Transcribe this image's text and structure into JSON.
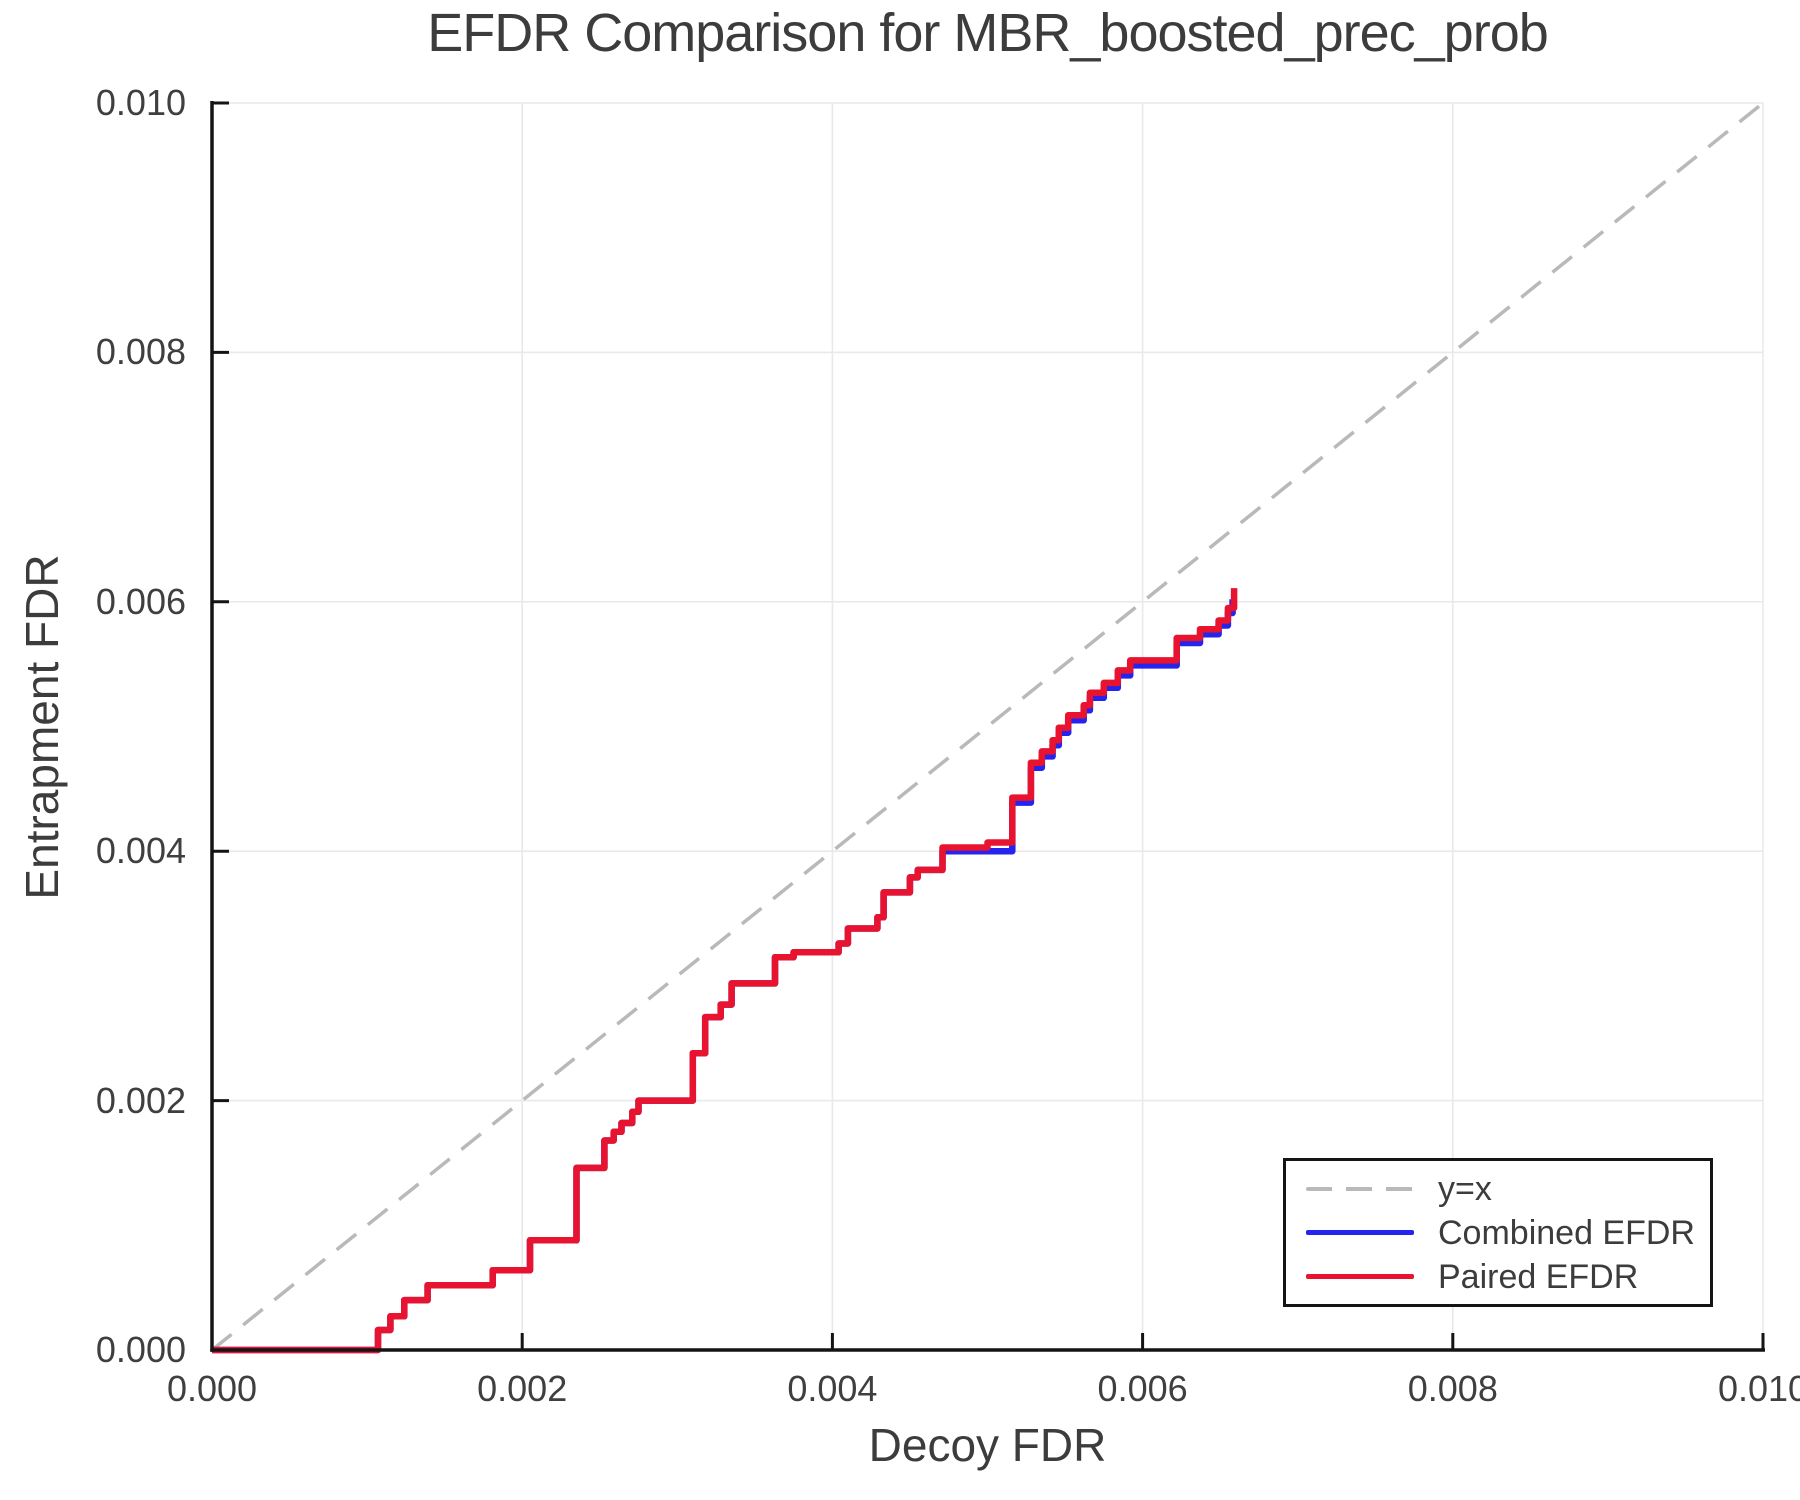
{
  "title": "EFDR Comparison for MBR_boosted_prec_prob",
  "chart_data": {
    "type": "line",
    "title": "EFDR Comparison for MBR_boosted_prec_prob",
    "xlabel": "Decoy FDR",
    "ylabel": "Entrapment FDR",
    "xlim": [
      0.0,
      0.01
    ],
    "ylim": [
      0.0,
      0.01
    ],
    "grid": true,
    "legend_position": "lower right",
    "x_ticks": {
      "values": [
        0.0,
        0.002,
        0.004,
        0.006,
        0.008,
        0.01
      ],
      "labels": [
        "0.000",
        "0.002",
        "0.004",
        "0.006",
        "0.008",
        "0.010"
      ]
    },
    "y_ticks": {
      "values": [
        0.0,
        0.002,
        0.004,
        0.006,
        0.008,
        0.01
      ],
      "labels": [
        "0.000",
        "0.002",
        "0.004",
        "0.006",
        "0.008",
        "0.010"
      ]
    },
    "colors": {
      "reference": "#b9b9b9",
      "combined": "#2424ee",
      "paired": "#e8132f",
      "grid": "#e9e9e9",
      "spine": "#141414",
      "text": "#3c3c3c"
    },
    "series": [
      {
        "id": "yx",
        "label": "y=x",
        "color": "#b9b9b9",
        "dash": true,
        "step": false,
        "width": 3.5,
        "points": [
          [
            0.0,
            0.0
          ],
          [
            0.01,
            0.01
          ]
        ]
      },
      {
        "id": "combined",
        "label": "Combined EFDR",
        "color": "#2424ee",
        "dash": false,
        "step": true,
        "width": 6.5,
        "points": [
          [
            0.0,
            0.0
          ],
          [
            0.00107,
            0.00016
          ],
          [
            0.00115,
            0.00027
          ],
          [
            0.00124,
            0.0004
          ],
          [
            0.00139,
            0.00052
          ],
          [
            0.00181,
            0.00064
          ],
          [
            0.00205,
            0.00088
          ],
          [
            0.00235,
            0.00146
          ],
          [
            0.00253,
            0.00168
          ],
          [
            0.00259,
            0.00175
          ],
          [
            0.00264,
            0.00182
          ],
          [
            0.00271,
            0.00191
          ],
          [
            0.00275,
            0.002
          ],
          [
            0.0031,
            0.00238
          ],
          [
            0.00318,
            0.00267
          ],
          [
            0.00328,
            0.00277
          ],
          [
            0.00335,
            0.00294
          ],
          [
            0.00363,
            0.00315
          ],
          [
            0.00375,
            0.00319
          ],
          [
            0.00404,
            0.00326
          ],
          [
            0.0041,
            0.00338
          ],
          [
            0.00429,
            0.00347
          ],
          [
            0.00433,
            0.00367
          ],
          [
            0.0045,
            0.00379
          ],
          [
            0.00455,
            0.00385
          ],
          [
            0.00471,
            0.004
          ],
          [
            0.00516,
            0.00439
          ],
          [
            0.00528,
            0.00467
          ],
          [
            0.00535,
            0.00476
          ],
          [
            0.00542,
            0.00485
          ],
          [
            0.00546,
            0.00495
          ],
          [
            0.00552,
            0.00505
          ],
          [
            0.00562,
            0.00513
          ],
          [
            0.00566,
            0.00523
          ],
          [
            0.00575,
            0.00531
          ],
          [
            0.00584,
            0.00541
          ],
          [
            0.00592,
            0.00549
          ],
          [
            0.00622,
            0.00567
          ],
          [
            0.00637,
            0.00574
          ],
          [
            0.00649,
            0.00581
          ],
          [
            0.00655,
            0.00591
          ],
          [
            0.00658,
            0.00602
          ]
        ]
      },
      {
        "id": "paired",
        "label": "Paired EFDR",
        "color": "#e8132f",
        "dash": false,
        "step": true,
        "width": 6.5,
        "points": [
          [
            0.0,
            0.0
          ],
          [
            0.00107,
            0.00016
          ],
          [
            0.00115,
            0.00027
          ],
          [
            0.00124,
            0.0004
          ],
          [
            0.00139,
            0.00052
          ],
          [
            0.00181,
            0.00064
          ],
          [
            0.00205,
            0.00088
          ],
          [
            0.00235,
            0.00146
          ],
          [
            0.00253,
            0.00168
          ],
          [
            0.00259,
            0.00175
          ],
          [
            0.00264,
            0.00182
          ],
          [
            0.00271,
            0.00191
          ],
          [
            0.00275,
            0.002
          ],
          [
            0.0031,
            0.00238
          ],
          [
            0.00318,
            0.00267
          ],
          [
            0.00328,
            0.00277
          ],
          [
            0.00335,
            0.00294
          ],
          [
            0.00363,
            0.00315
          ],
          [
            0.00375,
            0.00319
          ],
          [
            0.00404,
            0.00326
          ],
          [
            0.0041,
            0.00338
          ],
          [
            0.00429,
            0.00347
          ],
          [
            0.00433,
            0.00367
          ],
          [
            0.0045,
            0.00379
          ],
          [
            0.00455,
            0.00385
          ],
          [
            0.00471,
            0.00403
          ],
          [
            0.005,
            0.00407
          ],
          [
            0.00516,
            0.00443
          ],
          [
            0.00528,
            0.00471
          ],
          [
            0.00535,
            0.0048
          ],
          [
            0.00542,
            0.00489
          ],
          [
            0.00546,
            0.00499
          ],
          [
            0.00552,
            0.00509
          ],
          [
            0.00562,
            0.00517
          ],
          [
            0.00566,
            0.00527
          ],
          [
            0.00575,
            0.00535
          ],
          [
            0.00584,
            0.00545
          ],
          [
            0.00592,
            0.00553
          ],
          [
            0.00622,
            0.00571
          ],
          [
            0.00637,
            0.00578
          ],
          [
            0.00649,
            0.00585
          ],
          [
            0.00655,
            0.00595
          ],
          [
            0.00659,
            0.00611
          ]
        ]
      }
    ]
  },
  "legend": {
    "items": [
      {
        "label": "y=x"
      },
      {
        "label": "Combined EFDR"
      },
      {
        "label": "Paired EFDR"
      }
    ]
  }
}
